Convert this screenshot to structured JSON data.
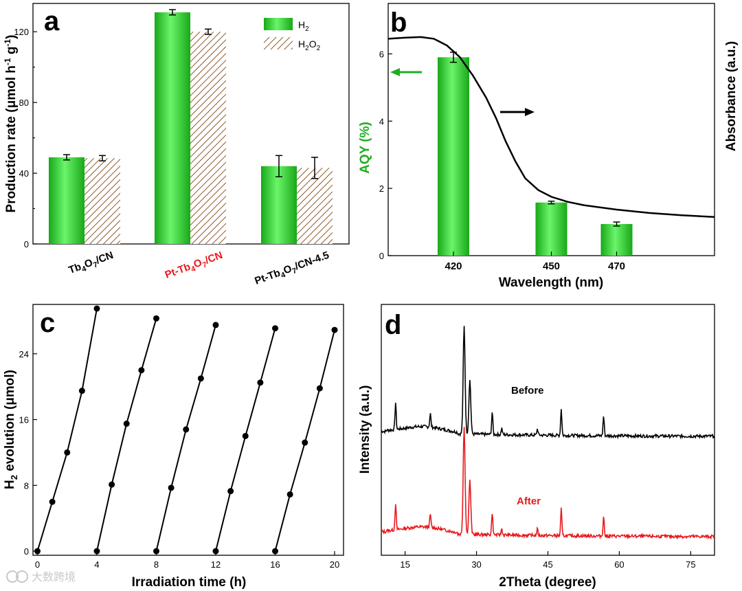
{
  "colors": {
    "green": "#22c022",
    "green_light": "#5ef05e",
    "hatch": "#8b5a2b",
    "red": "#e8191d",
    "black": "#000000",
    "green_label": "#1fae1f"
  },
  "watermark": "大数跨境",
  "chart_data": [
    {
      "panel": "a",
      "type": "bar",
      "ylabel_pre": "Production rate (",
      "ylabel_unit": "μmol h",
      "ylabel_sup1": "-1",
      "ylabel_g": " g",
      "ylabel_sup2": "-1",
      "ylabel_post": ")",
      "ylim": [
        0,
        136
      ],
      "yticks": [
        0,
        40,
        80,
        120
      ],
      "categories": [
        {
          "parts": [
            {
              "t": "Tb",
              "s": "n"
            },
            {
              "t": "4",
              "s": "sub"
            },
            {
              "t": "O",
              "s": "n"
            },
            {
              "t": "7",
              "s": "sub"
            },
            {
              "t": "/CN",
              "s": "n"
            }
          ],
          "red": false
        },
        {
          "parts": [
            {
              "t": "Pt-Tb",
              "s": "n"
            },
            {
              "t": "4",
              "s": "sub"
            },
            {
              "t": "O",
              "s": "n"
            },
            {
              "t": "7",
              "s": "sub"
            },
            {
              "t": "/CN",
              "s": "n"
            }
          ],
          "red": true
        },
        {
          "parts": [
            {
              "t": "Pt-Tb",
              "s": "n"
            },
            {
              "t": "4",
              "s": "sub"
            },
            {
              "t": "O",
              "s": "n"
            },
            {
              "t": "7",
              "s": "sub"
            },
            {
              "t": "/CN-4.5",
              "s": "n"
            }
          ],
          "red": false
        }
      ],
      "series": [
        {
          "name": "H",
          "sub": "2",
          "name_end": "",
          "values": [
            49,
            131,
            44
          ],
          "errors": [
            1.5,
            1.5,
            6
          ]
        },
        {
          "name": "H",
          "sub": "2",
          "name_end": "O",
          "sub2": "2",
          "values": [
            48.5,
            120,
            43
          ],
          "errors": [
            1.5,
            1.5,
            6
          ]
        }
      ]
    },
    {
      "panel": "b",
      "type": "bar+line",
      "xlabel": "Wavelength (nm)",
      "ylabel": "AQY (%)",
      "ylabel_right": "Absorbance (a.u.)",
      "xlim": [
        400,
        500
      ],
      "ylim": [
        0,
        7.5
      ],
      "yticks": [
        0,
        2,
        4,
        6
      ],
      "bars": [
        {
          "x": 420,
          "label": "420",
          "value": 5.9,
          "error": 0.15
        },
        {
          "x": 450,
          "label": "450",
          "value": 1.58,
          "error": 0.04
        },
        {
          "x": 470,
          "label": "470",
          "value": 0.94,
          "error": 0.06
        }
      ],
      "absorbance_curve": [
        [
          400,
          6.45
        ],
        [
          405,
          6.48
        ],
        [
          410,
          6.5
        ],
        [
          414,
          6.45
        ],
        [
          418,
          6.25
        ],
        [
          422,
          5.9
        ],
        [
          426,
          5.35
        ],
        [
          430,
          4.7
        ],
        [
          433,
          4.1
        ],
        [
          436,
          3.4
        ],
        [
          439,
          2.8
        ],
        [
          442,
          2.3
        ],
        [
          446,
          1.95
        ],
        [
          450,
          1.75
        ],
        [
          455,
          1.6
        ],
        [
          460,
          1.5
        ],
        [
          470,
          1.37
        ],
        [
          480,
          1.27
        ],
        [
          490,
          1.2
        ],
        [
          500,
          1.15
        ]
      ]
    },
    {
      "panel": "c",
      "type": "line",
      "xlabel": "Irradiation time (h)",
      "ylabel": "H",
      "ylabel_sub": "2",
      "ylabel_end": " evolution (μmol)",
      "xlim": [
        -0.3,
        20.6
      ],
      "ylim": [
        -0.5,
        30
      ],
      "xticks": [
        0,
        4,
        8,
        12,
        16,
        20
      ],
      "yticks": [
        0,
        8,
        16,
        24
      ],
      "series": [
        {
          "x": [
            0,
            1,
            2,
            3,
            4
          ],
          "y": [
            0,
            6,
            12,
            19.5,
            29.5
          ]
        },
        {
          "x": [
            4,
            5,
            6,
            7,
            8
          ],
          "y": [
            0,
            8.1,
            15.5,
            22,
            28.3
          ]
        },
        {
          "x": [
            8,
            9,
            10,
            11,
            12
          ],
          "y": [
            0,
            7.7,
            14.8,
            21,
            27.5
          ]
        },
        {
          "x": [
            12,
            13,
            14,
            15,
            16
          ],
          "y": [
            0,
            7.3,
            14,
            20.5,
            27.1
          ]
        },
        {
          "x": [
            16,
            17,
            18,
            19,
            20
          ],
          "y": [
            0,
            6.9,
            13.2,
            19.8,
            26.9
          ]
        }
      ]
    },
    {
      "panel": "d",
      "type": "line",
      "xlabel": "2Theta (degree)",
      "ylabel": "Intensity (a.u.)",
      "xlim": [
        10,
        80
      ],
      "xticks": [
        15,
        30,
        45,
        60,
        75
      ],
      "peaks": [
        [
          13,
          3
        ],
        [
          20.3,
          1.5
        ],
        [
          27.4,
          12
        ],
        [
          28.6,
          6
        ],
        [
          33.3,
          2.5
        ],
        [
          35.3,
          0.7
        ],
        [
          42.8,
          0.7
        ],
        [
          47.8,
          3
        ],
        [
          56.7,
          2.2
        ]
      ],
      "series": [
        {
          "name": "Before",
          "label": "Before",
          "offset": 8,
          "color": "#000000"
        },
        {
          "name": "After",
          "label": "After",
          "offset": 0,
          "color": "#e8191d"
        }
      ]
    }
  ]
}
